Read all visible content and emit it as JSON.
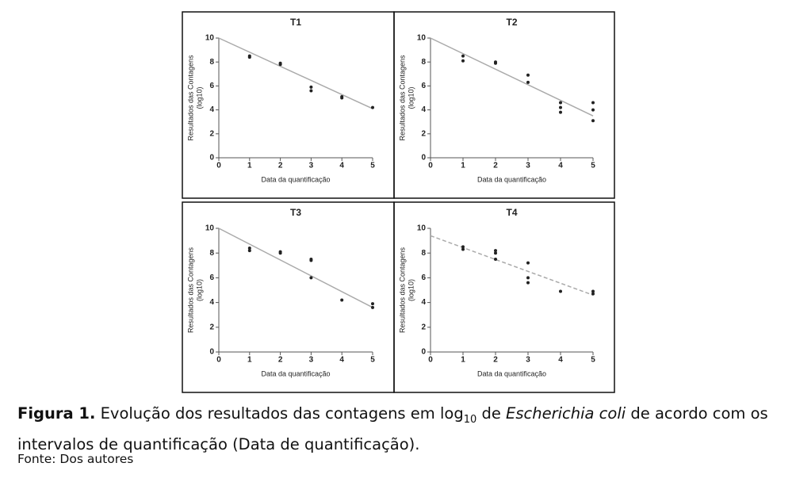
{
  "chart_data": [
    {
      "type": "scatter",
      "title": "T1",
      "xlabel": "Data da quantificação",
      "ylabel": [
        "Resultados das Contagens",
        "(log10)"
      ],
      "x": [
        1,
        1,
        2,
        2,
        3,
        3,
        4,
        4,
        5
      ],
      "y": [
        8.5,
        8.4,
        7.9,
        7.8,
        5.9,
        5.6,
        5.1,
        5.0,
        4.2
      ],
      "trend": {
        "x": [
          0,
          5
        ],
        "y": [
          10,
          4.1
        ]
      },
      "trend_style": "solid",
      "trend_color": "#aaaaaa",
      "color": "#222222",
      "xlim": [
        0,
        5
      ],
      "ylim": [
        0,
        10
      ],
      "xticks": [
        0,
        1,
        2,
        3,
        4,
        5
      ],
      "yticks": [
        0,
        2,
        4,
        6,
        8,
        10
      ]
    },
    {
      "type": "scatter",
      "title": "T2",
      "xlabel": "Data da quantificação",
      "ylabel": [
        "Resultados das Contagens",
        "(log10)"
      ],
      "x": [
        1,
        1,
        2,
        2,
        3,
        3,
        4,
        4,
        4,
        5,
        5,
        5
      ],
      "y": [
        8.5,
        8.1,
        8.0,
        7.9,
        6.9,
        6.3,
        4.6,
        4.2,
        3.8,
        4.6,
        4.0,
        3.1
      ],
      "trend": {
        "x": [
          0,
          5
        ],
        "y": [
          10,
          3.5
        ]
      },
      "trend_style": "solid",
      "trend_color": "#aaaaaa",
      "color": "#222222",
      "xlim": [
        0,
        5
      ],
      "ylim": [
        0,
        10
      ],
      "xticks": [
        0,
        1,
        2,
        3,
        4,
        5
      ],
      "yticks": [
        0,
        2,
        4,
        6,
        8,
        10
      ]
    },
    {
      "type": "scatter",
      "title": "T3",
      "xlabel": "Data da quantificação",
      "ylabel": [
        "Resultados das Contagens",
        "(log10)"
      ],
      "x": [
        1,
        1,
        2,
        2,
        3,
        3,
        3,
        4,
        5,
        5
      ],
      "y": [
        8.4,
        8.2,
        8.1,
        8.0,
        7.5,
        7.4,
        6.0,
        4.2,
        3.9,
        3.6
      ],
      "trend": {
        "x": [
          0,
          5
        ],
        "y": [
          10,
          3.6
        ]
      },
      "trend_style": "solid",
      "trend_color": "#aaaaaa",
      "color": "#222222",
      "xlim": [
        0,
        5
      ],
      "ylim": [
        0,
        10
      ],
      "xticks": [
        0,
        1,
        2,
        3,
        4,
        5
      ],
      "yticks": [
        0,
        2,
        4,
        6,
        8,
        10
      ]
    },
    {
      "type": "scatter",
      "title": "T4",
      "xlabel": "Data da quantificação",
      "ylabel": [
        "Resultados das Contagens",
        "(log10)"
      ],
      "x": [
        1,
        1,
        2,
        2,
        2,
        3,
        3,
        3,
        4,
        5,
        5
      ],
      "y": [
        8.5,
        8.3,
        8.2,
        8.0,
        7.5,
        7.2,
        6.0,
        5.6,
        4.9,
        4.9,
        4.7
      ],
      "trend": {
        "x": [
          0,
          5
        ],
        "y": [
          9.4,
          4.6
        ]
      },
      "trend_style": "dashed",
      "trend_color": "#aaaaaa",
      "color": "#222222",
      "xlim": [
        0,
        5
      ],
      "ylim": [
        0,
        10
      ],
      "xticks": [
        0,
        1,
        2,
        3,
        4,
        5
      ],
      "yticks": [
        0,
        2,
        4,
        6,
        8,
        10
      ]
    }
  ],
  "caption": {
    "label": "Figura 1.",
    "text_1": " Evolução dos resultados das contagens em log",
    "subscript": "10",
    "text_2": " de ",
    "italic": "Escherichia coli",
    "text_3": " de acordo com os intervalos de quantificação (Data de quantificação)."
  },
  "source": "Fonte: Dos autores"
}
